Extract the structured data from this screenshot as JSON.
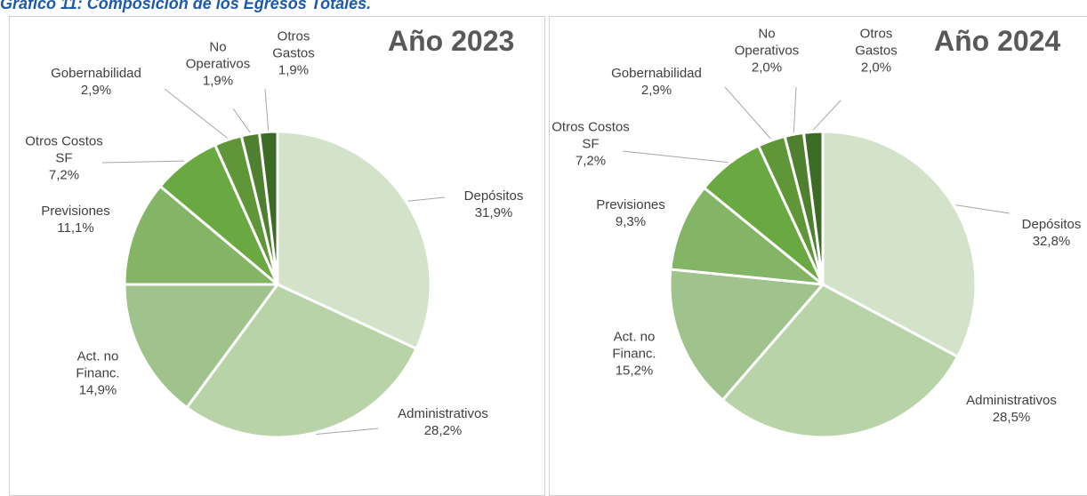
{
  "title": "Gráfico 11: Composición de los Egresos Totales.",
  "chart_data": [
    {
      "type": "pie",
      "title": "Año 2023",
      "categories": [
        "Depósitos",
        "Administrativos",
        "Act. no Financ.",
        "Previsiones",
        "Otros Costos SF",
        "Gobernabilidad",
        "No Operativos",
        "Otros Gastos"
      ],
      "values": [
        31.9,
        28.2,
        14.9,
        11.1,
        7.2,
        2.9,
        1.9,
        1.9
      ],
      "value_labels": [
        "31,9%",
        "28,2%",
        "14,9%",
        "11,1%",
        "7,2%",
        "2,9%",
        "1,9%",
        "1,9%"
      ],
      "colors": [
        "#d3e3c9",
        "#b9d3a9",
        "#a0c38d",
        "#84b567",
        "#6aa842",
        "#5e9638",
        "#4e8030",
        "#3d6b25"
      ]
    },
    {
      "type": "pie",
      "title": "Año 2024",
      "categories": [
        "Depósitos",
        "Administrativos",
        "Act. no Financ.",
        "Previsiones",
        "Otros Costos SF",
        "Gobernabilidad",
        "No Operativos",
        "Otros Gastos"
      ],
      "values": [
        32.8,
        28.5,
        15.2,
        9.3,
        7.2,
        2.9,
        2.0,
        2.0
      ],
      "value_labels": [
        "32,8%",
        "28,5%",
        "15,2%",
        "9,3%",
        "7,2%",
        "2,9%",
        "2,0%",
        "2,0%"
      ],
      "colors": [
        "#d3e3c9",
        "#b9d3a9",
        "#a0c38d",
        "#84b567",
        "#6aa842",
        "#5e9638",
        "#4e8030",
        "#3d6b25"
      ]
    }
  ]
}
